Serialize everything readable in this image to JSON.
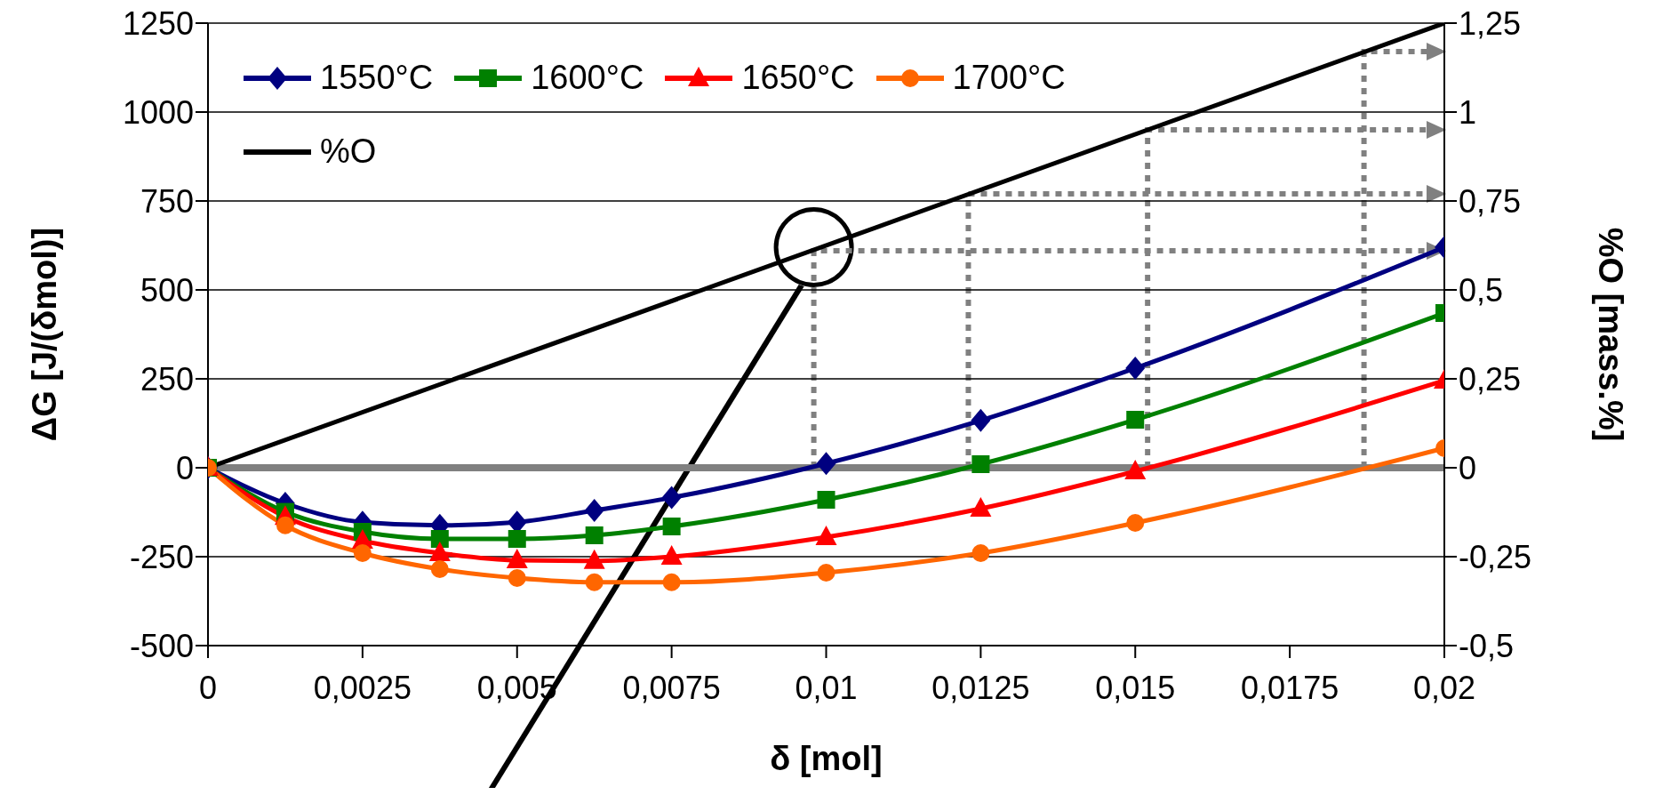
{
  "chart_data": {
    "type": "line",
    "xlabel": "δ [mol]",
    "ylabel": "ΔG [J/(δmol)]",
    "y2label": "%O [mass.%]",
    "xlim": [
      0,
      0.02
    ],
    "xticks": [
      0,
      {
        "value": 0.0025,
        "label": "0,0025"
      },
      {
        "value": 0.005,
        "label": "0,005"
      },
      {
        "value": 0.0075,
        "label": "0,0075"
      },
      {
        "value": 0.01,
        "label": "0,01"
      },
      {
        "value": 0.0125,
        "label": "0,0125"
      },
      {
        "value": 0.015,
        "label": "0,015"
      },
      {
        "value": 0.0175,
        "label": "0,0175"
      },
      {
        "value": 0.02,
        "label": "0,02"
      }
    ],
    "ylim": [
      -500,
      1250
    ],
    "yticks": [
      -500,
      -250,
      0,
      250,
      500,
      750,
      1000,
      1250
    ],
    "y2lim": [
      -0.5,
      1.25
    ],
    "y2ticks": [
      {
        "value": -0.5,
        "label": "-0,5"
      },
      {
        "value": -0.25,
        "label": "-0,25"
      },
      0,
      {
        "value": 0.25,
        "label": "0,25"
      },
      {
        "value": 0.5,
        "label": "0,5"
      },
      {
        "value": 0.75,
        "label": "0,75"
      },
      1,
      {
        "value": 1.25,
        "label": "1,25"
      }
    ],
    "x": [
      0,
      0.00125,
      0.0025,
      0.00375,
      0.005,
      0.00625,
      0.0075,
      0.01,
      0.0125,
      0.015,
      0.02
    ],
    "series": [
      {
        "name": "1550°C",
        "color": "#000080",
        "marker": "diamond",
        "values": [
          0,
          -100,
          -153,
          -162,
          -153,
          -120,
          -84,
          12,
          133,
          280,
          620
        ]
      },
      {
        "name": "1600°C",
        "color": "#008000",
        "marker": "square",
        "values": [
          0,
          -124,
          -180,
          -200,
          -200,
          -190,
          -165,
          -90,
          10,
          135,
          435
        ]
      },
      {
        "name": "1650°C",
        "color": "#ff0000",
        "marker": "triangle",
        "values": [
          0,
          -138,
          -205,
          -240,
          -260,
          -262,
          -250,
          -195,
          -115,
          -10,
          245
        ]
      },
      {
        "name": "1700°C",
        "color": "#ff6600",
        "marker": "circle",
        "values": [
          0,
          -162,
          -240,
          -285,
          -310,
          -322,
          -322,
          -295,
          -240,
          -155,
          55
        ]
      },
      {
        "name": "%O",
        "color": "#000000",
        "marker": "none",
        "axis": "y2",
        "x": [
          0,
          0.02
        ],
        "values": [
          0,
          1.25
        ]
      }
    ],
    "ref_lines": [
      {
        "axis": "y",
        "value": 0,
        "color": "#808080"
      }
    ],
    "grid": "y",
    "legend": "top left"
  }
}
